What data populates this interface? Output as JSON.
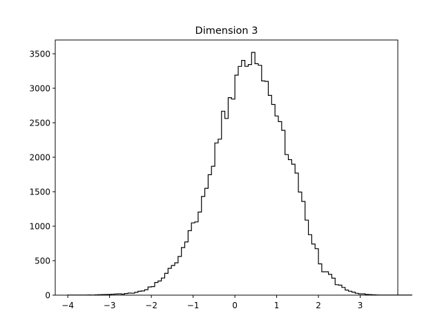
{
  "chart_data": {
    "type": "histogram",
    "title": "Dimension 3",
    "xlabel": "",
    "ylabel": "",
    "xlim": [
      -4.3,
      3.9
    ],
    "ylim": [
      0,
      3700
    ],
    "xticks": [
      -4,
      -3,
      -2,
      -1,
      0,
      1,
      2,
      3
    ],
    "xtick_labels": [
      "−4",
      "−3",
      "−2",
      "−1",
      "0",
      "1",
      "2",
      "3"
    ],
    "yticks": [
      0,
      500,
      1000,
      1500,
      2000,
      2500,
      3000,
      3500
    ],
    "ytick_labels": [
      "0",
      "500",
      "1000",
      "1500",
      "2000",
      "2500",
      "3000",
      "3500"
    ],
    "grid": false,
    "legend": "none",
    "style": "step",
    "line_color": "#000000",
    "bin_start": -4.0,
    "bin_width": 0.08,
    "counts": [
      1,
      1,
      1,
      1,
      1,
      2,
      3,
      2,
      4,
      6,
      8,
      9,
      10,
      13,
      16,
      19,
      15,
      24,
      30,
      28,
      41,
      56,
      61,
      79,
      119,
      124,
      184,
      205,
      248,
      316,
      389,
      430,
      469,
      561,
      690,
      771,
      935,
      1048,
      1062,
      1205,
      1431,
      1549,
      1746,
      1869,
      2207,
      2262,
      2667,
      2562,
      2864,
      2843,
      3190,
      3317,
      3404,
      3318,
      3344,
      3520,
      3356,
      3333,
      3106,
      3100,
      2896,
      2765,
      2598,
      2516,
      2390,
      2038,
      1965,
      1899,
      1770,
      1495,
      1359,
      1088,
      877,
      741,
      673,
      454,
      339,
      339,
      301,
      246,
      152,
      145,
      112,
      74,
      57,
      44,
      27,
      19,
      19,
      10,
      8,
      5,
      3,
      2,
      2,
      2,
      1,
      1,
      1,
      1,
      1,
      1,
      1
    ]
  }
}
